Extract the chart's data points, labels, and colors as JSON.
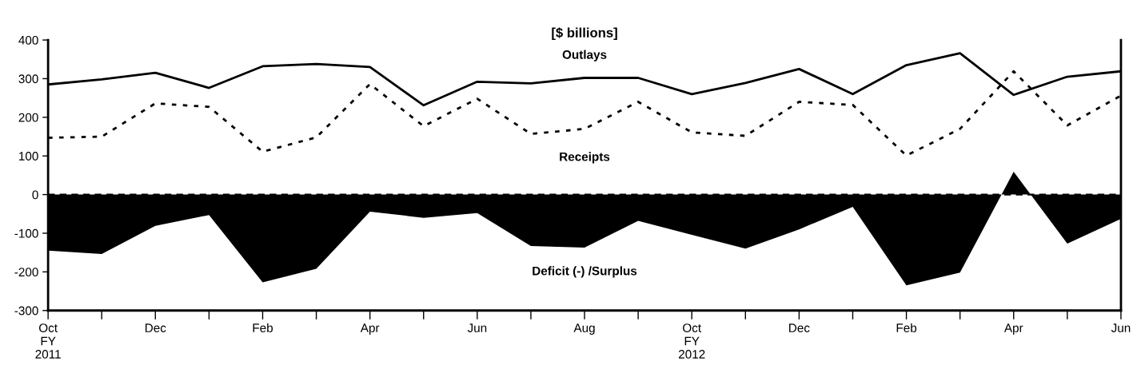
{
  "chart_data": {
    "type": "line",
    "title": "[$ billions]",
    "categories": [
      "Oct\nFY\n2011",
      null,
      "Dec",
      null,
      "Feb",
      null,
      "Apr",
      null,
      "Jun",
      null,
      "Aug",
      null,
      "Oct\nFY\n2012",
      null,
      "Dec",
      null,
      "Feb",
      null,
      "Apr",
      null,
      "Jun"
    ],
    "series": [
      {
        "name": "Outlays",
        "color": "#000000",
        "line_style": "solid",
        "values": [
          285,
          298,
          315,
          276,
          332,
          338,
          330,
          231,
          292,
          288,
          302,
          302,
          260,
          289,
          325,
          260,
          335,
          366,
          258,
          305,
          319
        ]
      },
      {
        "name": "Receipts",
        "color": "#000000",
        "line_style": "dotted",
        "values": [
          147,
          150,
          236,
          227,
          111,
          148,
          286,
          177,
          248,
          157,
          170,
          240,
          161,
          152,
          240,
          232,
          101,
          170,
          319,
          179,
          256
        ]
      },
      {
        "name": "Deficit (-) /Surplus",
        "type": "area",
        "color": "#000000",
        "values": [
          -145,
          -154,
          -81,
          -53,
          -227,
          -192,
          -44,
          -60,
          -48,
          -133,
          -137,
          -68,
          -104,
          -140,
          -90,
          -32,
          -235,
          -202,
          59,
          -127,
          -63
        ]
      }
    ],
    "ylim": [
      -300,
      400
    ],
    "yticks": [
      -300,
      -200,
      -100,
      0,
      100,
      200,
      300,
      400
    ],
    "ref_lines": [
      {
        "axis": "y",
        "value": 0,
        "line_style": "dashed",
        "color": "#000000"
      }
    ],
    "grid": false,
    "legend": false
  }
}
